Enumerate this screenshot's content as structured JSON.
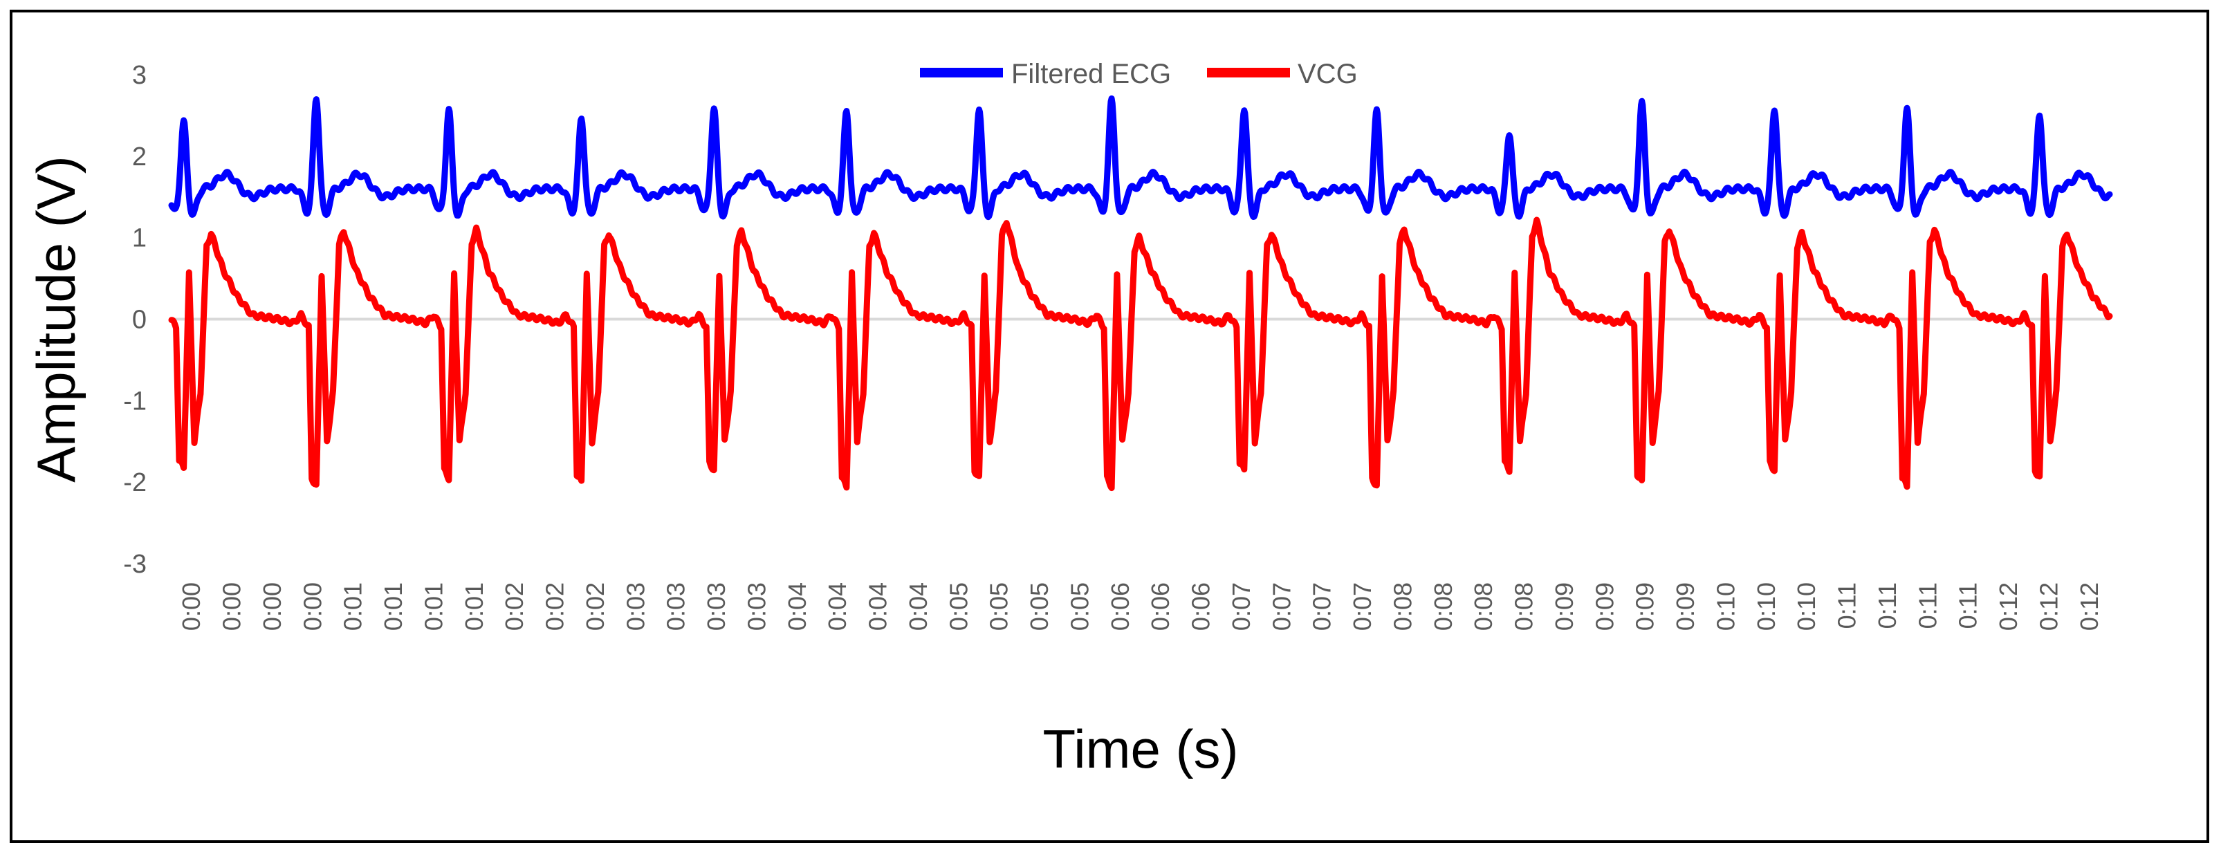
{
  "chart_data": {
    "type": "line",
    "title": "",
    "xlabel": "Time (s)",
    "ylabel": "Amplitude (V)",
    "ylim": [
      -3,
      3
    ],
    "yticks": [
      "3",
      "2",
      "1",
      "0",
      "-1",
      "-2",
      "-3"
    ],
    "ytick_values": [
      3,
      2,
      1,
      0,
      -1,
      -2,
      -3
    ],
    "x_tick_labels": [
      "0:00",
      "0:00",
      "0:00",
      "0:00",
      "0:01",
      "0:01",
      "0:01",
      "0:01",
      "0:02",
      "0:02",
      "0:02",
      "0:03",
      "0:03",
      "0:03",
      "0:03",
      "0:04",
      "0:04",
      "0:04",
      "0:04",
      "0:05",
      "0:05",
      "0:05",
      "0:05",
      "0:06",
      "0:06",
      "0:06",
      "0:07",
      "0:07",
      "0:07",
      "0:07",
      "0:08",
      "0:08",
      "0:08",
      "0:08",
      "0:09",
      "0:09",
      "0:09",
      "0:09",
      "0:10",
      "0:10",
      "0:10",
      "0:11",
      "0:11",
      "0:11",
      "0:11",
      "0:12",
      "0:12",
      "0:12"
    ],
    "xlim": [
      0,
      0.1272
    ],
    "legend_position": "top-center",
    "grid": false,
    "beat_times": [
      0.0008,
      0.0095,
      0.0182,
      0.0269,
      0.0356,
      0.0443,
      0.053,
      0.0617,
      0.0704,
      0.0791,
      0.0878,
      0.0965,
      0.1052,
      0.1139,
      0.1226
    ],
    "series": [
      {
        "name": "Filtered ECG",
        "color": "#0000ff",
        "baseline_v": 1.6,
        "r_peak_v": [
          2.45,
          2.75,
          2.6,
          2.5,
          2.62,
          2.58,
          2.62,
          2.72,
          2.62,
          2.58,
          2.32,
          2.68,
          2.62,
          2.6,
          2.55
        ],
        "t_wave_v": 1.78
      },
      {
        "name": "VCG",
        "color": "#ff0000",
        "baseline_v": 0.0,
        "min_v": [
          -1.82,
          -2.05,
          -1.95,
          -2.0,
          -1.85,
          -2.05,
          -1.95,
          -2.05,
          -1.85,
          -2.05,
          -1.85,
          -2.0,
          -1.85,
          -2.05,
          -1.95
        ],
        "max_v": [
          1.05,
          1.08,
          1.1,
          1.05,
          1.08,
          1.05,
          1.2,
          1.0,
          1.05,
          1.1,
          1.2,
          1.1,
          1.05,
          1.1,
          1.05
        ]
      }
    ]
  }
}
